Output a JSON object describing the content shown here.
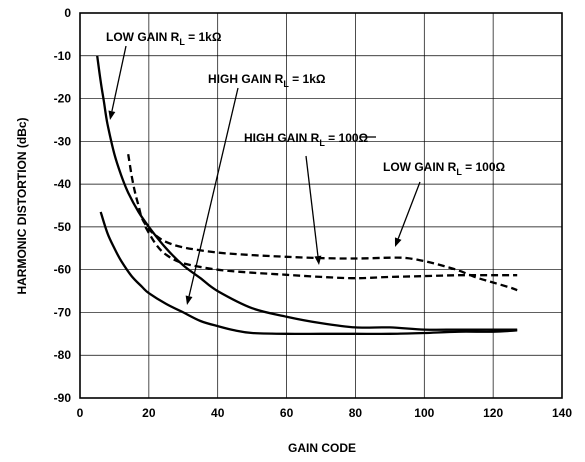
{
  "chart_data": {
    "type": "line",
    "xlabel": "GAIN CODE",
    "ylabel": "HARMONIC DISTORTION (dBc)",
    "xlim": [
      0,
      140
    ],
    "ylim": [
      -90,
      0
    ],
    "x_ticks": [
      0,
      20,
      40,
      60,
      80,
      100,
      120,
      140
    ],
    "y_ticks": [
      0,
      -10,
      -20,
      -30,
      -40,
      -50,
      -60,
      -70,
      -80,
      -90
    ],
    "grid": true,
    "series": [
      {
        "name": "LOW GAIN RL = 1kΩ",
        "style": "solid",
        "x": [
          5,
          6,
          7,
          8,
          10,
          12,
          14,
          17,
          20,
          25,
          30,
          35,
          40,
          50,
          60,
          70,
          80,
          90,
          100,
          110,
          120,
          127
        ],
        "y": [
          -10,
          -16,
          -21,
          -26,
          -33,
          -38,
          -42,
          -46.5,
          -50,
          -55,
          -59,
          -62,
          -65,
          -69,
          -71,
          -72.5,
          -73.5,
          -73.5,
          -74,
          -74,
          -74,
          -74
        ]
      },
      {
        "name": "HIGH GAIN RL = 1kΩ",
        "style": "solid",
        "x": [
          6,
          8,
          10,
          12,
          15,
          18,
          20,
          25,
          30,
          35,
          40,
          45,
          50,
          60,
          70,
          80,
          90,
          100,
          110,
          120,
          127
        ],
        "y": [
          -46.5,
          -51.5,
          -55,
          -58,
          -61.5,
          -64,
          -65.5,
          -68,
          -70,
          -72,
          -73.2,
          -74.2,
          -74.8,
          -75,
          -75,
          -75,
          -75,
          -74.8,
          -74.5,
          -74.5,
          -74.2
        ]
      },
      {
        "name": "HIGH GAIN RL = 100Ω",
        "style": "dashed",
        "x": [
          19,
          22,
          25,
          30,
          40,
          50,
          60,
          70,
          80,
          90,
          100,
          110,
          120,
          127
        ],
        "y": [
          -50,
          -54,
          -56.5,
          -58.5,
          -60,
          -60.7,
          -61.2,
          -61.7,
          -62,
          -61.7,
          -61.5,
          -61.3,
          -61.3,
          -61.3
        ]
      },
      {
        "name": "LOW GAIN RL = 100Ω",
        "style": "dashed",
        "x": [
          14,
          15,
          16,
          17,
          18,
          20,
          22,
          25,
          30,
          40,
          50,
          60,
          70,
          80,
          90,
          95,
          100,
          105,
          110,
          115,
          120,
          125,
          127
        ],
        "y": [
          -33,
          -38,
          -42,
          -45,
          -48,
          -50.5,
          -52,
          -53.5,
          -54.8,
          -56,
          -56.6,
          -57,
          -57.3,
          -57.4,
          -57.2,
          -57.3,
          -58,
          -59,
          -60.2,
          -61.8,
          -63,
          -64.2,
          -64.8
        ]
      }
    ],
    "annotations": [
      {
        "main": "LOW GAIN R",
        "sub": "L",
        "suffix": " = 1kΩ",
        "series": "LOW GAIN RL = 1kΩ"
      },
      {
        "main": "HIGH GAIN R",
        "sub": "L",
        "suffix": " = 1kΩ",
        "series": "HIGH GAIN RL = 1kΩ"
      },
      {
        "main": "HIGH GAIN R",
        "sub": "L",
        "suffix": " = 100Ω",
        "series": "HIGH GAIN RL = 100Ω"
      },
      {
        "main": "LOW GAIN R",
        "sub": "L",
        "suffix": " = 100Ω",
        "series": "LOW GAIN RL = 100Ω"
      }
    ]
  }
}
